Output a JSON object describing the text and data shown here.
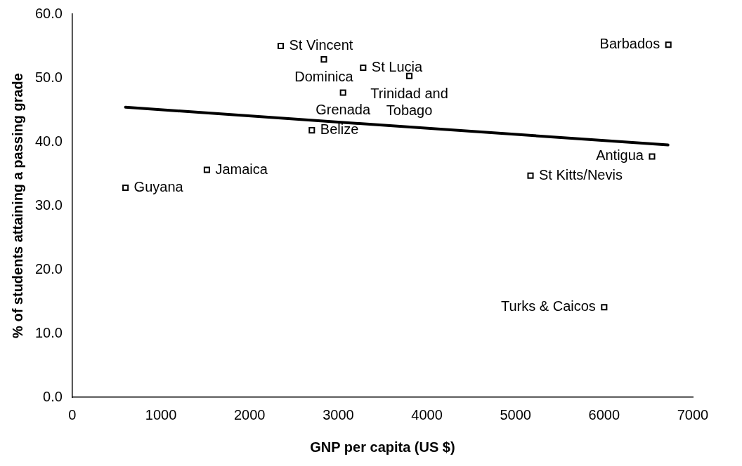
{
  "chart_data": {
    "type": "scatter",
    "xlabel": "GNP per capita (US $)",
    "ylabel": "% of students attaining a passing grade",
    "xlim": [
      0,
      7000
    ],
    "xticks": [
      0,
      1000,
      2000,
      3000,
      4000,
      5000,
      6000,
      7000
    ],
    "ylim": [
      0,
      60
    ],
    "yticks": [
      {
        "value": 0,
        "label": "0.0"
      },
      {
        "value": 10,
        "label": "10.0"
      },
      {
        "value": 20,
        "label": "20.0"
      },
      {
        "value": 30,
        "label": "30.0"
      },
      {
        "value": 40,
        "label": "40.0"
      },
      {
        "value": 50,
        "label": "50.0"
      },
      {
        "value": 60,
        "label": "60.0"
      }
    ],
    "grid": false,
    "legend": false,
    "marker": "square",
    "series": [
      {
        "color": "#000000",
        "x": [
          600,
          1518,
          2351,
          2838,
          3281,
          3054,
          3802,
          2702,
          5169,
          6000,
          6540,
          6724
        ],
        "values": [
          32.8,
          35.6,
          55.0,
          52.9,
          51.6,
          47.7,
          50.3,
          41.8,
          34.7,
          14.1,
          37.7,
          55.2
        ],
        "value_labels": [
          "Guyana",
          "Jamaica",
          "St Vincent",
          "Dominica",
          "St Lucia",
          "Grenada",
          "Trinidad and Tobago",
          "Belize",
          "St Kitts/Nevis",
          "Turks & Caicos",
          "Antigua",
          "Barbados"
        ]
      },
      {
        "type": "line",
        "color": "#000000",
        "x": [
          600,
          6720
        ],
        "values": [
          45.4,
          39.5
        ],
        "marker": "none",
        "line_style": "solid"
      }
    ]
  }
}
